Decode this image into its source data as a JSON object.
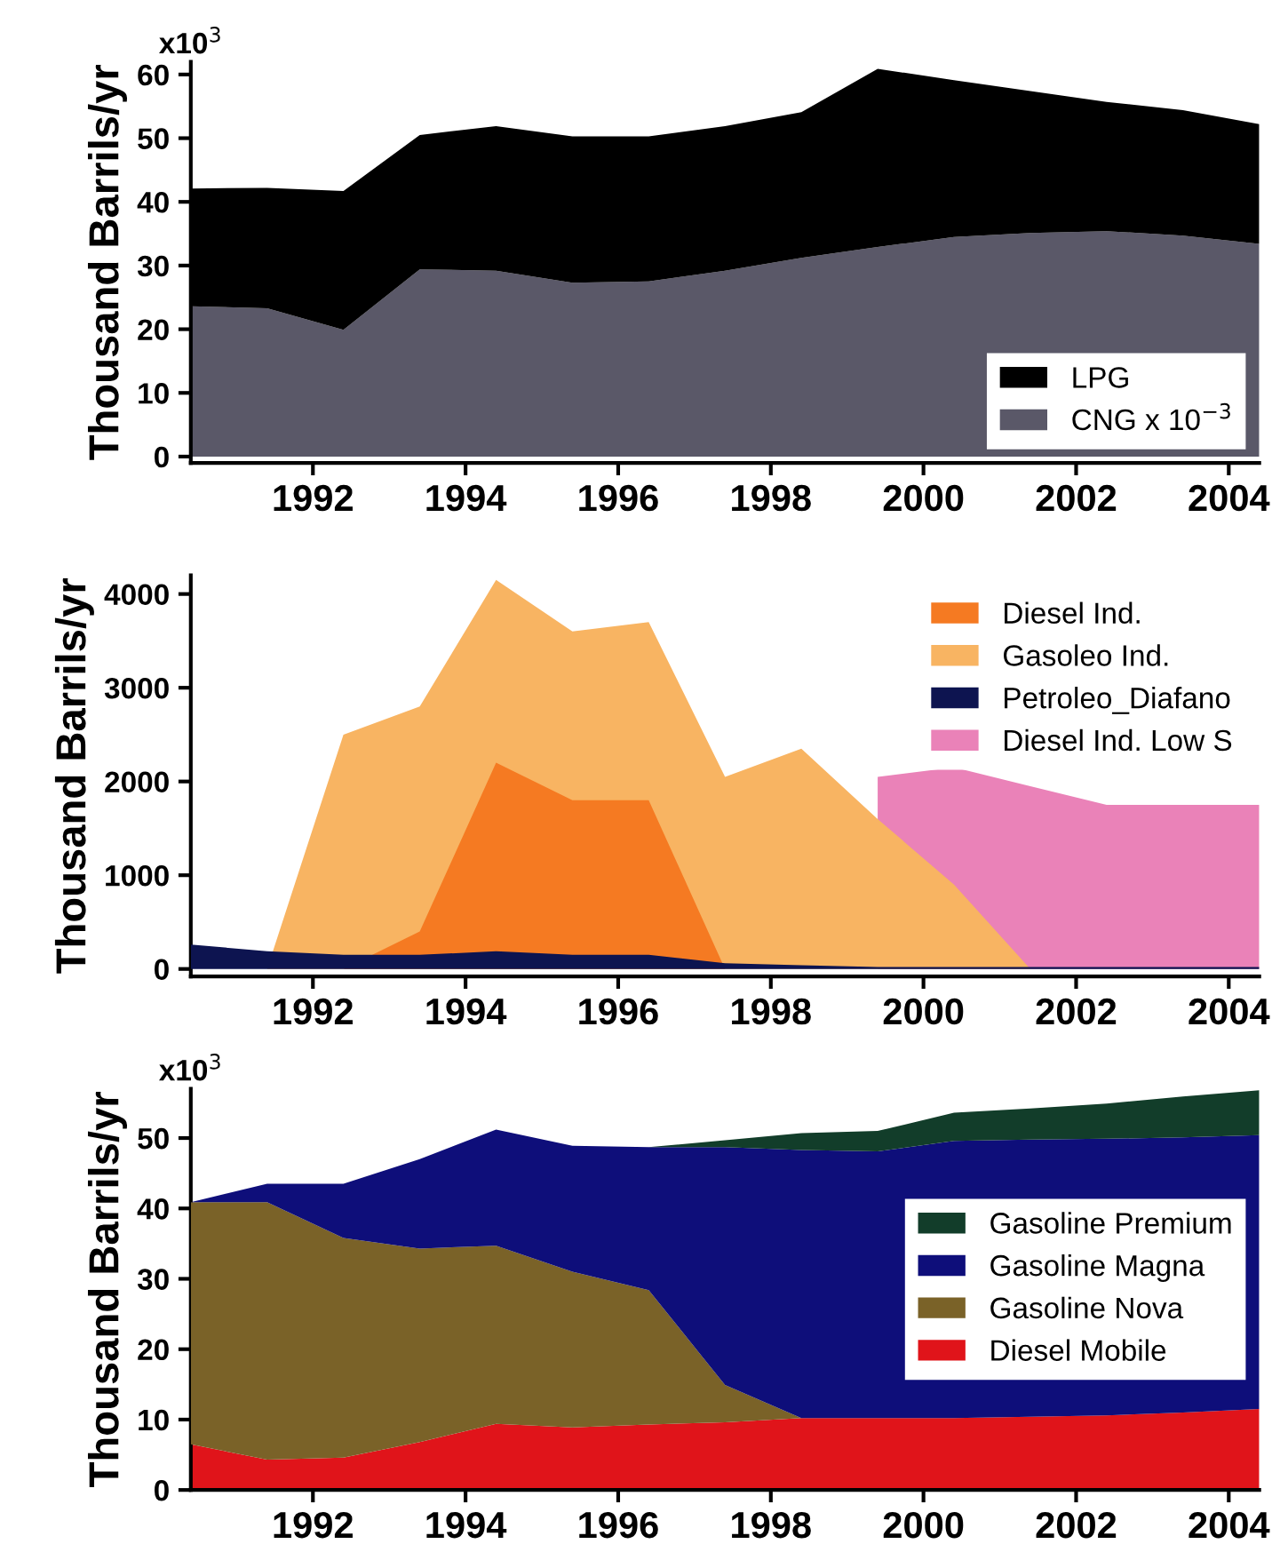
{
  "chart_data": [
    {
      "type": "area",
      "stacked": true,
      "ylabel": "Thousand Barrils/yr",
      "legend": "lower right",
      "grid": false,
      "x": [
        1990.4,
        1991.4,
        1992.4,
        1993.4,
        1994.4,
        1995.4,
        1996.4,
        1997.4,
        1998.4,
        1999.4,
        2000.4,
        2001.4,
        2002.4,
        2003.4,
        2004.4
      ],
      "xlim": [
        1990.4,
        2004.4
      ],
      "xticks": [
        1992,
        1994,
        1996,
        1998,
        2000,
        2002,
        2004
      ],
      "ylim": [
        -1,
        62
      ],
      "yticks": [
        0,
        10,
        20,
        30,
        40,
        50,
        60
      ],
      "annotations": [
        "x10$^{3}$"
      ],
      "series": [
        {
          "name": "CNG x 10$^{−3}$",
          "color": "#5a5868",
          "values": [
            23.6,
            23.3,
            19.9,
            29.4,
            29.2,
            27.3,
            27.5,
            29.2,
            31.2,
            32.9,
            34.5,
            35.1,
            35.4,
            34.7,
            33.4
          ]
        },
        {
          "name": "LPG",
          "color": "#000000",
          "values": [
            18.5,
            18.9,
            21.8,
            21.1,
            22.7,
            23.0,
            22.8,
            22.7,
            22.9,
            28.0,
            24.6,
            22.3,
            20.3,
            19.7,
            18.8
          ]
        }
      ]
    },
    {
      "type": "area",
      "ylabel": "Thousand Barrils/yr",
      "legend": "upper right",
      "grid": false,
      "x": [
        1990.4,
        1991.4,
        1992.4,
        1993.4,
        1994.4,
        1995.4,
        1996.4,
        1997.4,
        1998.4,
        1999.4,
        2000.4,
        2001.4,
        2002.4,
        2003.4,
        2004.4
      ],
      "xlim": [
        1990.4,
        2004.4
      ],
      "xticks": [
        1992,
        1994,
        1996,
        1998,
        2000,
        2002,
        2004
      ],
      "ylim": [
        -80,
        4200
      ],
      "yticks": [
        0,
        1000,
        2000,
        3000,
        4000
      ],
      "series": [
        {
          "name": "Diesel Ind.",
          "color": "#f57a22",
          "values": [
            0,
            0,
            0,
            400,
            2200,
            1800,
            1800,
            0,
            0,
            0,
            0,
            0,
            0,
            0,
            0
          ]
        },
        {
          "name": "Gasoleo Ind.",
          "color": "#f8b462",
          "values": [
            0,
            0,
            2500,
            2800,
            4150,
            3600,
            3700,
            2050,
            2350,
            1600,
            900,
            0,
            0,
            0,
            0
          ]
        },
        {
          "name": "Petroleo_Diafano",
          "color": "#0d1450",
          "values": [
            260,
            190,
            150,
            150,
            190,
            150,
            150,
            60,
            40,
            20,
            20,
            20,
            20,
            20,
            20
          ]
        },
        {
          "name": "Diesel Ind. Low S",
          "color": "#ea82b8",
          "values": [
            null,
            null,
            null,
            null,
            null,
            null,
            null,
            null,
            null,
            2050,
            2150,
            1950,
            1750,
            1750,
            1750
          ]
        }
      ]
    },
    {
      "type": "area",
      "stacked": true,
      "ylabel": "Thousand Barrils/yr",
      "legend": "center right",
      "grid": false,
      "x": [
        1990.4,
        1991.4,
        1992.4,
        1993.4,
        1994.4,
        1995.4,
        1996.4,
        1997.4,
        1998.4,
        1999.4,
        2000.4,
        2001.4,
        2002.4,
        2003.4,
        2004.4
      ],
      "xlim": [
        1990.4,
        2004.4
      ],
      "xticks": [
        1992,
        1994,
        1996,
        1998,
        2000,
        2002,
        2004
      ],
      "ylim": [
        0,
        57
      ],
      "yticks": [
        0,
        10,
        20,
        30,
        40,
        50
      ],
      "annotations": [
        "x10$^{3}$"
      ],
      "series": [
        {
          "name": "Diesel Mobile",
          "color": "#e0141a",
          "values": [
            6.5,
            4.3,
            4.6,
            6.8,
            9.4,
            8.9,
            9.3,
            9.6,
            10.2,
            10.2,
            10.2,
            10.4,
            10.6,
            11.0,
            11.5
          ]
        },
        {
          "name": "Gasoline Nova",
          "color": "#7a6228",
          "values": [
            34.4,
            36.6,
            31.2,
            27.5,
            25.3,
            22.1,
            19.1,
            5.3,
            0,
            0,
            0,
            0,
            0,
            0,
            0
          ]
        },
        {
          "name": "Gasoline Magna",
          "color": "#0e0e7a",
          "values": [
            0,
            2.6,
            7.7,
            12.7,
            16.5,
            17.9,
            20.3,
            33.8,
            38.1,
            37.9,
            39.4,
            39.4,
            39.3,
            39.1,
            38.9
          ]
        },
        {
          "name": "Gasoline Premium",
          "color": "#123d2a",
          "values": [
            0,
            0,
            0,
            0,
            0,
            0,
            0,
            1.0,
            2.4,
            2.9,
            4.0,
            4.4,
            5.0,
            5.8,
            6.4
          ]
        }
      ]
    }
  ]
}
